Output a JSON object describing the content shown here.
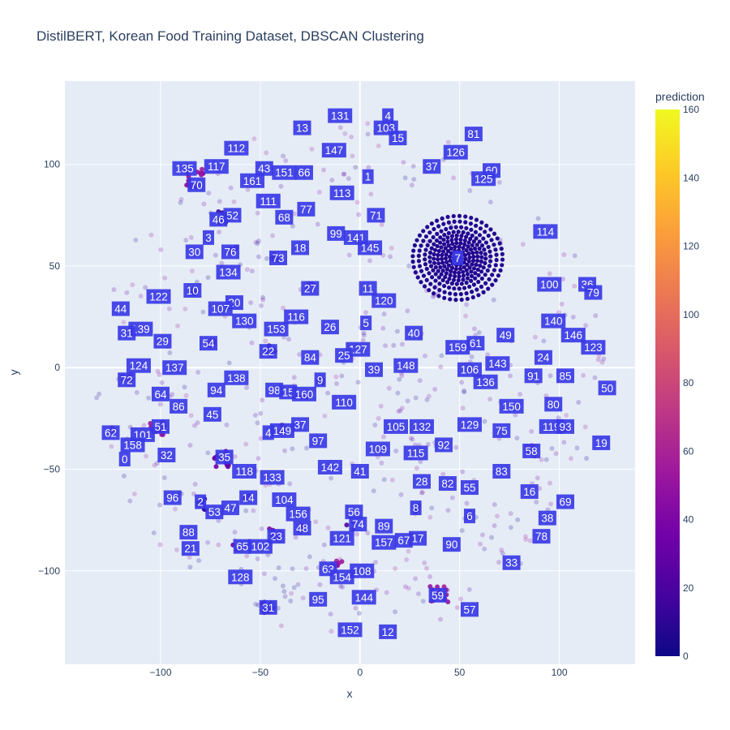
{
  "chart_data": {
    "type": "scatter",
    "title": "DistilBERT, Korean Food Training Dataset, DBSCAN Clustering",
    "xlabel": "x",
    "ylabel": "y",
    "xlim": [
      -148,
      138
    ],
    "ylim": [
      -146,
      141
    ],
    "x_ticks": [
      -100,
      -50,
      0,
      50,
      100
    ],
    "y_ticks": [
      -100,
      -50,
      0,
      50,
      100
    ],
    "grid": true,
    "plot_background": "#e5ecf6",
    "label_box_color": "#3a3ae6",
    "colorbar": {
      "title": "prediction",
      "range": [
        0,
        160
      ],
      "ticks": [
        0,
        20,
        40,
        60,
        80,
        100,
        120,
        140,
        160
      ],
      "colorscale": [
        "#0d0887",
        "#46039f",
        "#7201a8",
        "#9c179e",
        "#bd3786",
        "#d8576b",
        "#ed7953",
        "#fb9f3a",
        "#fdca26",
        "#f0f921"
      ]
    },
    "ring_cluster": {
      "label": "7",
      "x": 49,
      "y": 54,
      "prediction": 7
    },
    "cluster_labels": [
      {
        "t": "131",
        "x": -10,
        "y": 124
      },
      {
        "t": "4",
        "x": 14,
        "y": 124
      },
      {
        "t": "13",
        "x": -29,
        "y": 118
      },
      {
        "t": "103",
        "x": 13,
        "y": 118
      },
      {
        "t": "15",
        "x": 19,
        "y": 113
      },
      {
        "t": "81",
        "x": 57,
        "y": 115
      },
      {
        "t": "112",
        "x": -62,
        "y": 108
      },
      {
        "t": "147",
        "x": -13,
        "y": 107
      },
      {
        "t": "126",
        "x": 48,
        "y": 106
      },
      {
        "t": "135",
        "x": -88,
        "y": 98
      },
      {
        "t": "117",
        "x": -72,
        "y": 99
      },
      {
        "t": "43",
        "x": -48,
        "y": 98
      },
      {
        "t": "151",
        "x": -38,
        "y": 96
      },
      {
        "t": "66",
        "x": -28,
        "y": 96
      },
      {
        "t": "37",
        "x": 36,
        "y": 99
      },
      {
        "t": "1",
        "x": 4,
        "y": 94
      },
      {
        "t": "60",
        "x": 66,
        "y": 97
      },
      {
        "t": "125",
        "x": 62,
        "y": 93
      },
      {
        "t": "70",
        "x": -82,
        "y": 90
      },
      {
        "t": "161",
        "x": -54,
        "y": 92
      },
      {
        "t": "113",
        "x": -9,
        "y": 86
      },
      {
        "t": "111",
        "x": -46,
        "y": 82
      },
      {
        "t": "77",
        "x": -27,
        "y": 78
      },
      {
        "t": "52",
        "x": -64,
        "y": 75
      },
      {
        "t": "46",
        "x": -71,
        "y": 73
      },
      {
        "t": "68",
        "x": -38,
        "y": 74
      },
      {
        "t": "71",
        "x": 8,
        "y": 75
      },
      {
        "t": "3",
        "x": -76,
        "y": 64
      },
      {
        "t": "99",
        "x": -12,
        "y": 66
      },
      {
        "t": "141",
        "x": -2,
        "y": 64
      },
      {
        "t": "114",
        "x": 93,
        "y": 67
      },
      {
        "t": "76",
        "x": -65,
        "y": 57
      },
      {
        "t": "18",
        "x": -30,
        "y": 59
      },
      {
        "t": "145",
        "x": 5,
        "y": 59
      },
      {
        "t": "30",
        "x": -83,
        "y": 57
      },
      {
        "t": "73",
        "x": -41,
        "y": 54
      },
      {
        "t": "134",
        "x": -66,
        "y": 47
      },
      {
        "t": "100",
        "x": 95,
        "y": 41
      },
      {
        "t": "36",
        "x": 114,
        "y": 41
      },
      {
        "t": "10",
        "x": -84,
        "y": 38
      },
      {
        "t": "27",
        "x": -25,
        "y": 39
      },
      {
        "t": "11",
        "x": 4,
        "y": 39
      },
      {
        "t": "79",
        "x": 117,
        "y": 37
      },
      {
        "t": "122",
        "x": -101,
        "y": 35
      },
      {
        "t": "120",
        "x": 12,
        "y": 33
      },
      {
        "t": "44",
        "x": -120,
        "y": 29
      },
      {
        "t": "20",
        "x": -63,
        "y": 32
      },
      {
        "t": "107",
        "x": -70,
        "y": 29
      },
      {
        "t": "116",
        "x": -32,
        "y": 25
      },
      {
        "t": "130",
        "x": -58,
        "y": 23
      },
      {
        "t": "140",
        "x": 97,
        "y": 23
      },
      {
        "t": "139",
        "x": -110,
        "y": 19
      },
      {
        "t": "26",
        "x": -15,
        "y": 20
      },
      {
        "t": "5",
        "x": 3,
        "y": 22
      },
      {
        "t": "153",
        "x": -42,
        "y": 19
      },
      {
        "t": "31",
        "x": -117,
        "y": 17
      },
      {
        "t": "40",
        "x": 27,
        "y": 17
      },
      {
        "t": "49",
        "x": 73,
        "y": 16
      },
      {
        "t": "146",
        "x": 107,
        "y": 16
      },
      {
        "t": "29",
        "x": -99,
        "y": 13
      },
      {
        "t": "54",
        "x": -76,
        "y": 12
      },
      {
        "t": "159",
        "x": 49,
        "y": 10
      },
      {
        "t": "61",
        "x": 58,
        "y": 12
      },
      {
        "t": "123",
        "x": 117,
        "y": 10
      },
      {
        "t": "22",
        "x": -46,
        "y": 8
      },
      {
        "t": "127",
        "x": -1,
        "y": 9
      },
      {
        "t": "25",
        "x": -8,
        "y": 6
      },
      {
        "t": "24",
        "x": 92,
        "y": 5
      },
      {
        "t": "84",
        "x": -25,
        "y": 5
      },
      {
        "t": "143",
        "x": 69,
        "y": 2
      },
      {
        "t": "124",
        "x": -111,
        "y": 1
      },
      {
        "t": "137",
        "x": -93,
        "y": 0
      },
      {
        "t": "148",
        "x": 23,
        "y": 1
      },
      {
        "t": "106",
        "x": 55,
        "y": -1
      },
      {
        "t": "39",
        "x": 7,
        "y": -1
      },
      {
        "t": "91",
        "x": 87,
        "y": -4
      },
      {
        "t": "85",
        "x": 103,
        "y": -4
      },
      {
        "t": "72",
        "x": -117,
        "y": -6
      },
      {
        "t": "138",
        "x": -62,
        "y": -5
      },
      {
        "t": "9",
        "x": -20,
        "y": -6
      },
      {
        "t": "136",
        "x": 63,
        "y": -7
      },
      {
        "t": "94",
        "x": -72,
        "y": -11
      },
      {
        "t": "98",
        "x": -43,
        "y": -11
      },
      {
        "t": "15",
        "x": -36,
        "y": -12
      },
      {
        "t": "160",
        "x": -28,
        "y": -13
      },
      {
        "t": "50",
        "x": 124,
        "y": -10
      },
      {
        "t": "64",
        "x": -100,
        "y": -13
      },
      {
        "t": "110",
        "x": -8,
        "y": -17
      },
      {
        "t": "80",
        "x": 97,
        "y": -18
      },
      {
        "t": "86",
        "x": -91,
        "y": -19
      },
      {
        "t": "150",
        "x": 76,
        "y": -19
      },
      {
        "t": "45",
        "x": -74,
        "y": -23
      },
      {
        "t": "37",
        "x": -30,
        "y": -28
      },
      {
        "t": "149",
        "x": -39,
        "y": -31
      },
      {
        "t": "4",
        "x": -46,
        "y": -32
      },
      {
        "t": "105",
        "x": 18,
        "y": -29
      },
      {
        "t": "132",
        "x": 31,
        "y": -29
      },
      {
        "t": "129",
        "x": 55,
        "y": -28
      },
      {
        "t": "75",
        "x": 71,
        "y": -31
      },
      {
        "t": "119",
        "x": 96,
        "y": -29
      },
      {
        "t": "93",
        "x": 103,
        "y": -29
      },
      {
        "t": "51",
        "x": -100,
        "y": -29
      },
      {
        "t": "62",
        "x": -125,
        "y": -32
      },
      {
        "t": "101",
        "x": -109,
        "y": -33
      },
      {
        "t": "97",
        "x": -21,
        "y": -36
      },
      {
        "t": "19",
        "x": 121,
        "y": -37
      },
      {
        "t": "158",
        "x": -114,
        "y": -38
      },
      {
        "t": "92",
        "x": 42,
        "y": -38
      },
      {
        "t": "109",
        "x": 9,
        "y": -40
      },
      {
        "t": "115",
        "x": 28,
        "y": -42
      },
      {
        "t": "58",
        "x": 86,
        "y": -41
      },
      {
        "t": "32",
        "x": -97,
        "y": -43
      },
      {
        "t": "35",
        "x": -68,
        "y": -44
      },
      {
        "t": "0",
        "x": -118,
        "y": -45
      },
      {
        "t": "142",
        "x": -15,
        "y": -49
      },
      {
        "t": "41",
        "x": 0,
        "y": -51
      },
      {
        "t": "83",
        "x": 71,
        "y": -51
      },
      {
        "t": "118",
        "x": -58,
        "y": -51
      },
      {
        "t": "133",
        "x": -44,
        "y": -54
      },
      {
        "t": "28",
        "x": 31,
        "y": -56
      },
      {
        "t": "82",
        "x": 44,
        "y": -57
      },
      {
        "t": "55",
        "x": 55,
        "y": -59
      },
      {
        "t": "16",
        "x": 85,
        "y": -61
      },
      {
        "t": "96",
        "x": -94,
        "y": -64
      },
      {
        "t": "14",
        "x": -56,
        "y": -64
      },
      {
        "t": "104",
        "x": -38,
        "y": -65
      },
      {
        "t": "69",
        "x": 103,
        "y": -66
      },
      {
        "t": "2",
        "x": -80,
        "y": -66
      },
      {
        "t": "47",
        "x": -65,
        "y": -69
      },
      {
        "t": "53",
        "x": -73,
        "y": -71
      },
      {
        "t": "56",
        "x": -3,
        "y": -71
      },
      {
        "t": "156",
        "x": -31,
        "y": -72
      },
      {
        "t": "8",
        "x": 28,
        "y": -69
      },
      {
        "t": "6",
        "x": 55,
        "y": -73
      },
      {
        "t": "38",
        "x": 94,
        "y": -74
      },
      {
        "t": "74",
        "x": -1,
        "y": -77
      },
      {
        "t": "48",
        "x": -29,
        "y": -79
      },
      {
        "t": "89",
        "x": 12,
        "y": -78
      },
      {
        "t": "88",
        "x": -86,
        "y": -81
      },
      {
        "t": "23",
        "x": -42,
        "y": -83
      },
      {
        "t": "121",
        "x": -9,
        "y": -84
      },
      {
        "t": "17",
        "x": 29,
        "y": -84
      },
      {
        "t": "157",
        "x": 12,
        "y": -86
      },
      {
        "t": "67",
        "x": 22,
        "y": -85
      },
      {
        "t": "78",
        "x": 91,
        "y": -83
      },
      {
        "t": "90",
        "x": 46,
        "y": -87
      },
      {
        "t": "65",
        "x": -59,
        "y": -88
      },
      {
        "t": "102",
        "x": -50,
        "y": -88
      },
      {
        "t": "21",
        "x": -85,
        "y": -89
      },
      {
        "t": "33",
        "x": 76,
        "y": -96
      },
      {
        "t": "63",
        "x": -16,
        "y": -99
      },
      {
        "t": "108",
        "x": 1,
        "y": -100
      },
      {
        "t": "154",
        "x": -9,
        "y": -103
      },
      {
        "t": "128",
        "x": -60,
        "y": -103
      },
      {
        "t": "59",
        "x": 39,
        "y": -112
      },
      {
        "t": "95",
        "x": -21,
        "y": -114
      },
      {
        "t": "144",
        "x": 2,
        "y": -113
      },
      {
        "t": "31",
        "x": -46,
        "y": -118
      },
      {
        "t": "57",
        "x": 55,
        "y": -119
      },
      {
        "t": "152",
        "x": -5,
        "y": -129
      },
      {
        "t": "12",
        "x": 14,
        "y": -130
      }
    ],
    "clusters": [
      {
        "x": -83,
        "y": 93,
        "p": 50,
        "n": 18,
        "s": 5
      },
      {
        "x": -69,
        "y": 74,
        "p": 10,
        "n": 9,
        "s": 3
      },
      {
        "x": -84,
        "y": 38,
        "p": 10,
        "n": 5,
        "s": 2
      },
      {
        "x": -64,
        "y": 58,
        "p": 30,
        "n": 5,
        "s": 2
      },
      {
        "x": -42,
        "y": 54,
        "p": 35,
        "n": 5,
        "s": 2
      },
      {
        "x": -25,
        "y": 40,
        "p": 45,
        "n": 4,
        "s": 2
      },
      {
        "x": -45,
        "y": 8,
        "p": 20,
        "n": 6,
        "s": 3
      },
      {
        "x": -75,
        "y": 12,
        "p": 55,
        "n": 5,
        "s": 2
      },
      {
        "x": -117,
        "y": -6,
        "p": 65,
        "n": 8,
        "s": 3
      },
      {
        "x": -102,
        "y": -30,
        "p": 50,
        "n": 12,
        "s": 4
      },
      {
        "x": -125,
        "y": -31,
        "p": 60,
        "n": 6,
        "s": 2
      },
      {
        "x": -69,
        "y": -45,
        "p": 30,
        "n": 14,
        "s": 4
      },
      {
        "x": -80,
        "y": -67,
        "p": 15,
        "n": 7,
        "s": 3
      },
      {
        "x": -56,
        "y": -64,
        "p": 15,
        "n": 5,
        "s": 2
      },
      {
        "x": -43,
        "y": -82,
        "p": 40,
        "n": 8,
        "s": 3
      },
      {
        "x": -30,
        "y": -79,
        "p": 45,
        "n": 6,
        "s": 2
      },
      {
        "x": -46,
        "y": -118,
        "p": 20,
        "n": 12,
        "s": 3
      },
      {
        "x": -12,
        "y": -98,
        "p": 55,
        "n": 8,
        "s": 3
      },
      {
        "x": 40,
        "y": -112,
        "p": 55,
        "n": 14,
        "s": 5
      },
      {
        "x": 86,
        "y": -41,
        "p": 60,
        "n": 6,
        "s": 3
      },
      {
        "x": 28,
        "y": -69,
        "p": 10,
        "n": 4,
        "s": 2
      },
      {
        "x": 55,
        "y": -73,
        "p": 12,
        "n": 4,
        "s": 2
      },
      {
        "x": 7,
        "y": -1,
        "p": 55,
        "n": 4,
        "s": 2
      },
      {
        "x": -20,
        "y": -6,
        "p": 25,
        "n": 4,
        "s": 2
      },
      {
        "x": -28,
        "y": -13,
        "p": 35,
        "n": 5,
        "s": 2
      },
      {
        "x": -39,
        "y": -30,
        "p": 40,
        "n": 4,
        "s": 2
      },
      {
        "x": 103,
        "y": -29,
        "p": 50,
        "n": 3,
        "s": 2
      },
      {
        "x": 44,
        "y": -57,
        "p": 60,
        "n": 3,
        "s": 2
      },
      {
        "x": -5,
        "y": -78,
        "p": 20,
        "n": 3,
        "s": 2
      },
      {
        "x": -62,
        "y": -88,
        "p": 30,
        "n": 3,
        "s": 2
      }
    ]
  }
}
